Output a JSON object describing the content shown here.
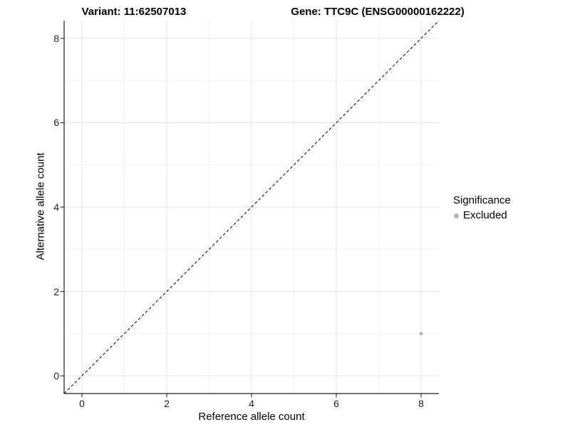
{
  "chart_data": {
    "type": "scatter",
    "titles": {
      "left": "Variant: 11:62507013",
      "right": "Gene: TTC9C (ENSG00000162222)"
    },
    "xlabel": "Reference allele count",
    "ylabel": "Alternative allele count",
    "xlim": [
      -0.42,
      8.42
    ],
    "ylim": [
      -0.42,
      8.42
    ],
    "x_ticks": [
      0,
      2,
      4,
      6,
      8
    ],
    "y_ticks": [
      0,
      2,
      4,
      6,
      8
    ],
    "grid_step": 1,
    "grid_on": true,
    "identity_line": {
      "slope": 1,
      "intercept": 0,
      "style": "dashed"
    },
    "series": [
      {
        "name": "Excluded",
        "color": "#b3b3b3",
        "point_radius": 2.4,
        "points": [
          [
            8,
            1
          ]
        ]
      }
    ],
    "legend": {
      "position": "right",
      "title": "Significance",
      "items": [
        {
          "label": "Excluded",
          "color": "#b3b3b3"
        }
      ]
    },
    "colors": {
      "background": "#ffffff",
      "grid_major": "#e5e5e5",
      "grid_minor": "#f0f0f0",
      "axis_line": "#1a1a1a",
      "tick_mark": "#2b2b2b",
      "dashed_line": "#000000",
      "text": "#000000"
    }
  }
}
